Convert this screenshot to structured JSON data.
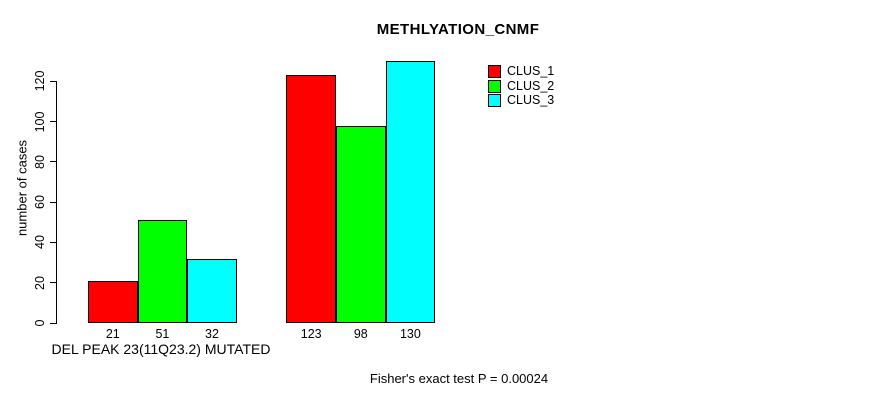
{
  "chart_data": {
    "type": "bar",
    "title": "METHLYATION_CNMF",
    "ylabel": "number of cases",
    "xlabel": "DEL PEAK 23(11Q23.2) MUTATED",
    "footer": "Fisher's exact test P = 0.00024",
    "yticks": [
      0,
      20,
      40,
      60,
      80,
      100,
      120
    ],
    "ylim": [
      0,
      130
    ],
    "grid": false,
    "legend_position": "top-right",
    "groups": 2,
    "series": [
      {
        "name": "CLUS_1",
        "color": "#ff0000",
        "values": [
          21,
          123
        ]
      },
      {
        "name": "CLUS_2",
        "color": "#00ff00",
        "values": [
          51,
          98
        ]
      },
      {
        "name": "CLUS_3",
        "color": "#00ffff",
        "values": [
          32,
          130
        ]
      }
    ],
    "bar_value_labels": [
      [
        "21",
        "51",
        "32"
      ],
      [
        "123",
        "98",
        "130"
      ]
    ]
  }
}
